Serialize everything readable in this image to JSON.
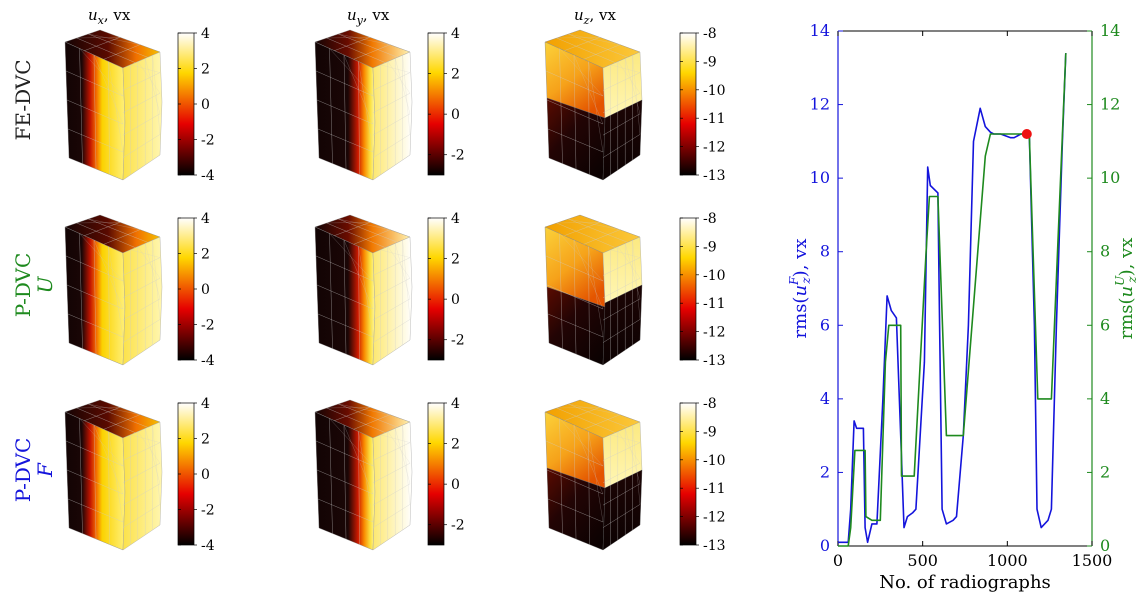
{
  "chart_data": [
    {
      "type": "heatmap",
      "subtype": "3d-field-grid",
      "columns": [
        {
          "title_var": "u",
          "title_sub": "x",
          "title_unit": ", vx",
          "colorbar_ticks": [
            "4",
            "2",
            "0",
            "-2",
            "-4"
          ],
          "colormap": "hot"
        },
        {
          "title_var": "u",
          "title_sub": "y",
          "title_unit": ", vx",
          "colorbar_ticks": [
            "4",
            "2",
            "0",
            "-2"
          ],
          "colormap": "hot"
        },
        {
          "title_var": "u",
          "title_sub": "z",
          "title_unit": ", vx",
          "colorbar_ticks": [
            "-8",
            "-9",
            "-10",
            "-11",
            "-12",
            "-13"
          ],
          "colormap": "hot"
        }
      ],
      "rows": [
        {
          "label": "FE-DVC",
          "sublabel": "",
          "color": "#222222"
        },
        {
          "label": "P-DVC",
          "sublabel": "U",
          "color": "#1e8a1e"
        },
        {
          "label": "P-DVC",
          "sublabel": "F",
          "color": "#1414dc"
        }
      ]
    },
    {
      "type": "line",
      "xlabel": "No. of radiographs",
      "ylabel_left": {
        "prefix": "rms(",
        "var": "u",
        "sub": "z",
        "sup": "F",
        "suffix": "), vx"
      },
      "ylabel_right": {
        "prefix": "rms(",
        "var": "u",
        "sub": "z",
        "sup": "U",
        "suffix": "), vx"
      },
      "xlim": [
        0,
        1500
      ],
      "ylim_left": [
        0,
        14
      ],
      "ylim_right": [
        0,
        14
      ],
      "xticks": [
        0,
        500,
        1000,
        1500
      ],
      "yticks": [
        0,
        2,
        4,
        6,
        8,
        10,
        12,
        14
      ],
      "series": [
        {
          "axis": "left",
          "color": "#1414dc",
          "x": [
            0,
            60,
            75,
            95,
            110,
            150,
            160,
            175,
            200,
            230,
            265,
            290,
            315,
            345,
            370,
            390,
            410,
            440,
            460,
            510,
            530,
            545,
            590,
            600,
            615,
            640,
            680,
            700,
            740,
            770,
            800,
            840,
            870,
            890,
            900,
            920,
            960,
            1020,
            1040,
            1080,
            1130,
            1160,
            1175,
            1200,
            1240,
            1260,
            1290,
            1325,
            1345
          ],
          "y": [
            0.1,
            0.1,
            1.0,
            3.4,
            3.2,
            3.2,
            0.5,
            0.1,
            0.6,
            0.6,
            4.0,
            6.8,
            6.4,
            6.2,
            3.0,
            0.5,
            0.8,
            0.9,
            1.0,
            5.0,
            10.3,
            9.8,
            9.6,
            6.0,
            1.0,
            0.6,
            0.7,
            0.8,
            3.0,
            6.0,
            11.0,
            11.9,
            11.4,
            11.3,
            11.25,
            11.2,
            11.2,
            11.1,
            11.1,
            11.2,
            11.2,
            6.0,
            1.0,
            0.5,
            0.7,
            1.0,
            6.0,
            11.0,
            13.4
          ]
        },
        {
          "axis": "right",
          "color": "#1e8a1e",
          "x": [
            0,
            60,
            75,
            100,
            160,
            165,
            200,
            250,
            280,
            300,
            370,
            375,
            400,
            450,
            520,
            540,
            590,
            640,
            700,
            740,
            870,
            900,
            1130,
            1180,
            1260,
            1345
          ],
          "y": [
            0,
            0,
            0.5,
            2.6,
            2.6,
            0.8,
            0.7,
            0.7,
            5.0,
            6.0,
            6.0,
            1.9,
            1.9,
            1.9,
            8.0,
            9.5,
            9.5,
            3.0,
            3.0,
            3.0,
            10.6,
            11.2,
            11.2,
            4.0,
            4.0,
            13.4
          ]
        }
      ],
      "markers": [
        {
          "x": 1115,
          "y": 11.2,
          "color": "#ee1111",
          "axis": "left"
        }
      ]
    }
  ]
}
